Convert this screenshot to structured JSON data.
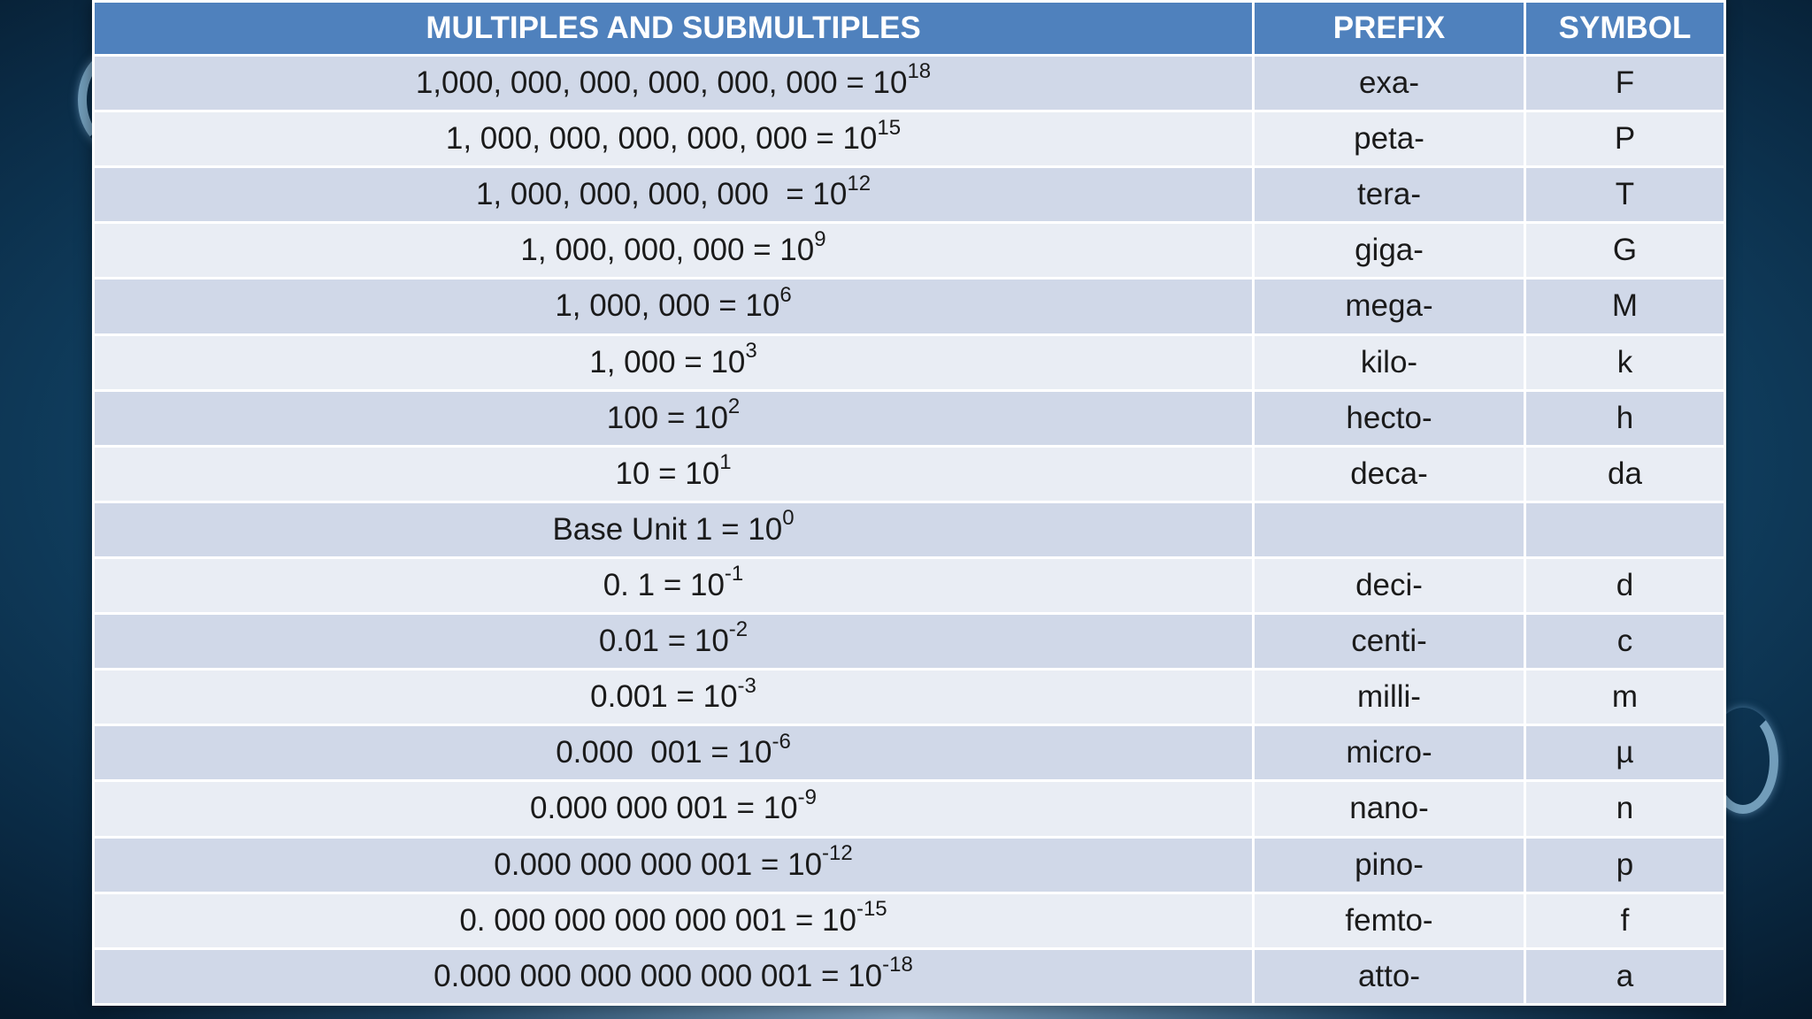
{
  "table": {
    "headers": {
      "multiples": "MULTIPLES AND SUBMULTIPLES",
      "prefix": "PREFIX",
      "symbol": "SYMBOL"
    },
    "rows": [
      {
        "value": "1,000, 000, 000, 000, 000, 000 = 10",
        "exponent": "18",
        "prefix": "exa-",
        "symbol": "F"
      },
      {
        "value": "1, 000, 000, 000, 000, 000 = 10",
        "exponent": "15",
        "prefix": "peta-",
        "symbol": "P"
      },
      {
        "value": "1, 000, 000, 000, 000  = 10",
        "exponent": "12",
        "prefix": "tera-",
        "symbol": "T"
      },
      {
        "value": "1, 000, 000, 000 = 10",
        "exponent": "9",
        "prefix": "giga-",
        "symbol": "G"
      },
      {
        "value": "1, 000, 000 = 10",
        "exponent": "6",
        "prefix": "mega-",
        "symbol": "M"
      },
      {
        "value": "1, 000 = 10",
        "exponent": "3",
        "prefix": "kilo-",
        "symbol": "k"
      },
      {
        "value": "100 = 10",
        "exponent": "2",
        "prefix": "hecto-",
        "symbol": "h"
      },
      {
        "value": "10 = 10",
        "exponent": "1",
        "prefix": "deca-",
        "symbol": "da"
      },
      {
        "value": "Base Unit 1 = 10",
        "exponent": "0",
        "prefix": "",
        "symbol": ""
      },
      {
        "value": "0. 1 = 10",
        "exponent": "-1",
        "prefix": "deci-",
        "symbol": "d"
      },
      {
        "value": "0.01 = 10",
        "exponent": "-2",
        "prefix": "centi-",
        "symbol": "c"
      },
      {
        "value": "0.001 = 10",
        "exponent": "-3",
        "prefix": "milli-",
        "symbol": "m"
      },
      {
        "value": "0.000  001 = 10",
        "exponent": "-6",
        "prefix": "micro-",
        "symbol": "µ"
      },
      {
        "value": "0.000 000 001 = 10",
        "exponent": "-9",
        "prefix": "nano-",
        "symbol": "n"
      },
      {
        "value": "0.000 000 000 001 = 10",
        "exponent": "-12",
        "prefix": "pino-",
        "symbol": "p"
      },
      {
        "value": "0. 000 000 000 000 001 = 10",
        "exponent": "-15",
        "prefix": "femto-",
        "symbol": "f"
      },
      {
        "value": "0.000 000 000 000 000 001 = 10",
        "exponent": "-18",
        "prefix": "atto-",
        "symbol": "a"
      }
    ]
  },
  "colors": {
    "header_bg": "#4f81bd",
    "row_odd_bg": "#d0d8e8",
    "row_even_bg": "#e9edf4",
    "background": "#124568"
  }
}
